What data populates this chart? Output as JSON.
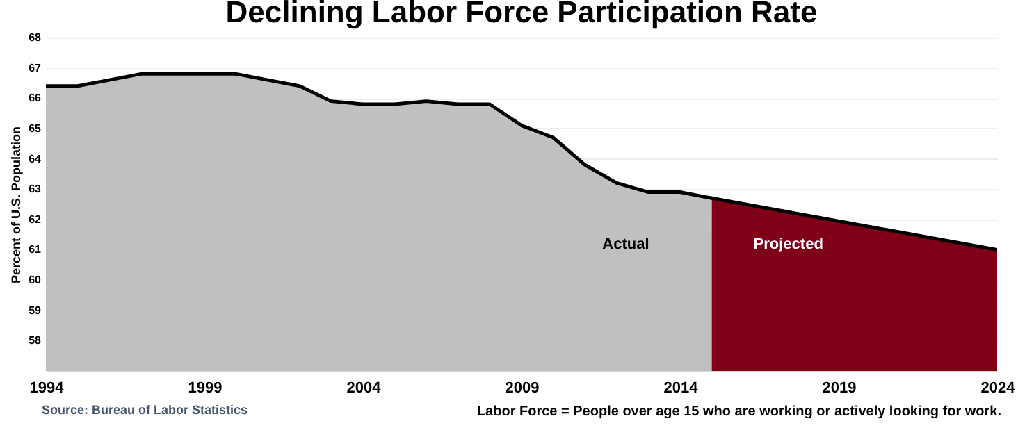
{
  "chart_data": {
    "type": "area",
    "title": "Declining Labor Force Participation Rate",
    "ylabel": "Percent of U.S. Population",
    "annotations": [
      "Source: Bureau of Labor Statistics",
      "Labor Force = People over age 15 who are working or actively looking for work."
    ],
    "xlim": [
      1994,
      2024
    ],
    "xticks": [
      1994,
      1999,
      2004,
      2009,
      2014,
      2019,
      2024
    ],
    "ylim": [
      57,
      68
    ],
    "yticks": [
      58,
      59,
      60,
      61,
      62,
      63,
      64,
      65,
      66,
      67,
      68
    ],
    "grid": "y",
    "series": [
      {
        "name": "Actual",
        "color": "#c0c0c0",
        "x": [
          1994,
          1995,
          1996,
          1997,
          1998,
          1999,
          2000,
          2001,
          2002,
          2003,
          2004,
          2005,
          2006,
          2007,
          2008,
          2009,
          2010,
          2011,
          2012,
          2013,
          2014,
          2015
        ],
        "values": [
          66.4,
          66.4,
          66.6,
          66.8,
          66.8,
          66.8,
          66.8,
          66.6,
          66.4,
          65.9,
          65.8,
          65.8,
          65.9,
          65.8,
          65.8,
          65.1,
          64.7,
          63.8,
          63.2,
          62.9,
          62.9,
          62.7
        ]
      },
      {
        "name": "Projected",
        "color": "#800018",
        "x": [
          2015,
          2024
        ],
        "values": [
          62.7,
          61.0
        ]
      }
    ]
  }
}
